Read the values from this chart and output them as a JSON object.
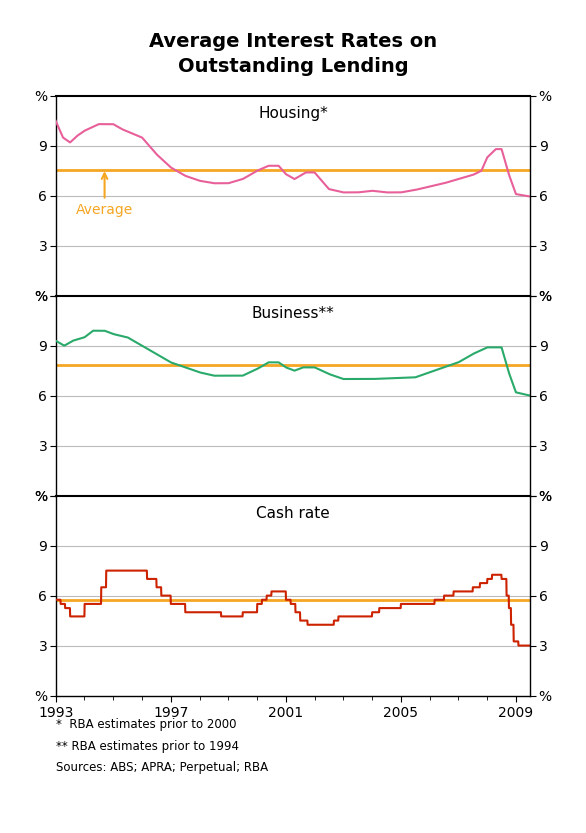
{
  "title": "Average Interest Rates on\nOutstanding Lending",
  "title_fontsize": 14,
  "footnote1": "*  RBA estimates prior to 2000",
  "footnote2": "** RBA estimates prior to 1994",
  "footnote3": "Sources: ABS; APRA; Perpetual; RBA",
  "xlabel_ticks": [
    1993,
    1997,
    2001,
    2005,
    2009
  ],
  "xmin": 1993.0,
  "xmax": 2009.5,
  "housing_color": "#e8609a",
  "business_color": "#2aaa6a",
  "cashrate_color": "#cc2200",
  "average_color": "#f5a623",
  "housing_average": 7.55,
  "business_average": 7.85,
  "cashrate_average": 5.75,
  "housing_label": "Housing*",
  "business_label": "Business**",
  "cashrate_label": "Cash rate",
  "average_label": "Average",
  "panel_ylim": [
    0,
    12
  ],
  "background_color": "#ffffff",
  "grid_color": "#bbbbbb"
}
